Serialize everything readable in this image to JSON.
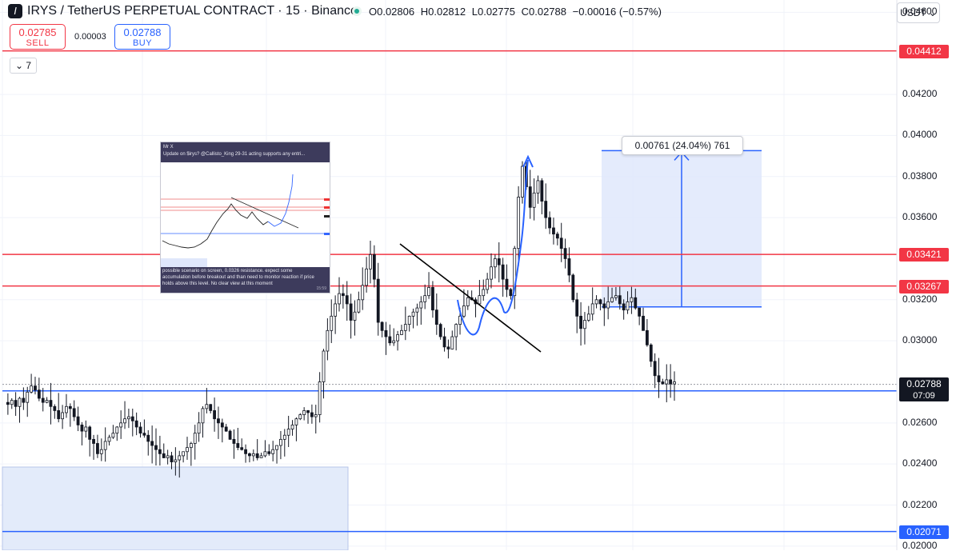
{
  "header": {
    "logo_glyph": "I",
    "title": "IRYS / TetherUS PERPETUAL CONTRACT · 15 · Binance",
    "ohlc": {
      "open": "O0.02806",
      "high": "H0.02812",
      "low": "L0.02775",
      "close": "C0.02788",
      "change": "−0.00016 (−0.57%)"
    }
  },
  "trade": {
    "sell_price": "0.02785",
    "sell_label": "SELL",
    "spread": "0.00003",
    "buy_price": "0.02788",
    "buy_label": "BUY"
  },
  "indicators_toggle": "7",
  "currency": "USDT",
  "measure_label": "0.00761 (24.04%) 761",
  "countdown": "07:09",
  "inset": {
    "author": "Mr X",
    "headline": "Update on $irys? @Callisto_King 29-31 acting supports any entri...",
    "body": "possible scenario on screen, 0.0326 resistance. expect some accumulation before breakout and than need to monitor reaction if price holds above this level. No clear view at this moment",
    "time": "15:59"
  },
  "colors": {
    "up": "#131722",
    "down": "#131722",
    "resistance": "#f23645",
    "support": "#2962ff",
    "measure_fill": "#dfe7fb",
    "projection": "#2962ff",
    "trendline": "#000000"
  },
  "chart_data": {
    "type": "candlestick",
    "symbol": "IRYS/USDT",
    "interval": "15",
    "ylim": [
      0.0198,
      0.0466
    ],
    "y_ticks": [
      "0.04600",
      "0.04200",
      "0.04000",
      "0.03800",
      "0.03600",
      "0.03200",
      "0.03000",
      "0.02600",
      "0.02400",
      "0.02200",
      "0.02000"
    ],
    "last_price": 0.02788,
    "last_price_label": "0.02788",
    "horizontal_levels": [
      {
        "value": 0.04412,
        "label": "0.04412",
        "color": "#f23645"
      },
      {
        "value": 0.03421,
        "label": "0.03421",
        "color": "#f23645"
      },
      {
        "value": 0.03267,
        "label": "0.03267",
        "color": "#f23645"
      },
      {
        "value": 0.02756,
        "label": "0.02756",
        "color": "#2962ff"
      },
      {
        "value": 0.02071,
        "label": "0.02071",
        "color": "#2962ff"
      }
    ],
    "measure": {
      "from": 0.03165,
      "to": 0.03926,
      "change": 0.00761,
      "percent": 24.04,
      "ticks": 761
    },
    "price_path": [
      0.027,
      0.0269,
      0.0271,
      0.0268,
      0.0272,
      0.027,
      0.0275,
      0.0278,
      0.0276,
      0.0272,
      0.027,
      0.0271,
      0.0268,
      0.0266,
      0.0262,
      0.0265,
      0.0268,
      0.0267,
      0.0263,
      0.0259,
      0.0256,
      0.0258,
      0.0252,
      0.025,
      0.0245,
      0.0247,
      0.0251,
      0.0253,
      0.0255,
      0.0258,
      0.026,
      0.0262,
      0.0263,
      0.0261,
      0.0258,
      0.0255,
      0.0254,
      0.0251,
      0.0249,
      0.0247,
      0.0245,
      0.0243,
      0.0244,
      0.0241,
      0.0242,
      0.0244,
      0.0246,
      0.0248,
      0.025,
      0.0255,
      0.026,
      0.0267,
      0.0269,
      0.0266,
      0.0262,
      0.026,
      0.0258,
      0.0256,
      0.0252,
      0.025,
      0.0248,
      0.0247,
      0.0245,
      0.0244,
      0.0245,
      0.0243,
      0.0244,
      0.0246,
      0.0245,
      0.0247,
      0.0249,
      0.0252,
      0.0254,
      0.0257,
      0.0259,
      0.0262,
      0.0264,
      0.0266,
      0.0265,
      0.0263,
      0.0264,
      0.028,
      0.0295,
      0.0305,
      0.0312,
      0.0318,
      0.0323,
      0.0322,
      0.0318,
      0.031,
      0.0314,
      0.032,
      0.0327,
      0.0335,
      0.0342,
      0.033,
      0.0309,
      0.0305,
      0.0302,
      0.0299,
      0.03,
      0.0303,
      0.0305,
      0.0308,
      0.0312,
      0.0314,
      0.0316,
      0.0319,
      0.0322,
      0.0326,
      0.0315,
      0.0308,
      0.0302,
      0.0297,
      0.0296,
      0.0302,
      0.0308,
      0.0312,
      0.0317,
      0.0321,
      0.032,
      0.0318,
      0.0322,
      0.0325,
      0.033,
      0.0336,
      0.034,
      0.0337,
      0.033,
      0.0325,
      0.0322,
      0.0345,
      0.037,
      0.0385,
      0.0375,
      0.0365,
      0.0372,
      0.0378,
      0.0368,
      0.036,
      0.0355,
      0.0352,
      0.035,
      0.0345,
      0.034,
      0.0332,
      0.032,
      0.0312,
      0.0306,
      0.031,
      0.0313,
      0.0318,
      0.032,
      0.0318,
      0.0316,
      0.0319,
      0.0321,
      0.0322,
      0.0318,
      0.0315,
      0.0319,
      0.0321,
      0.0316,
      0.0312,
      0.0305,
      0.0298,
      0.029,
      0.0283,
      0.028,
      0.0279,
      0.0281,
      0.0279,
      0.028
    ]
  }
}
